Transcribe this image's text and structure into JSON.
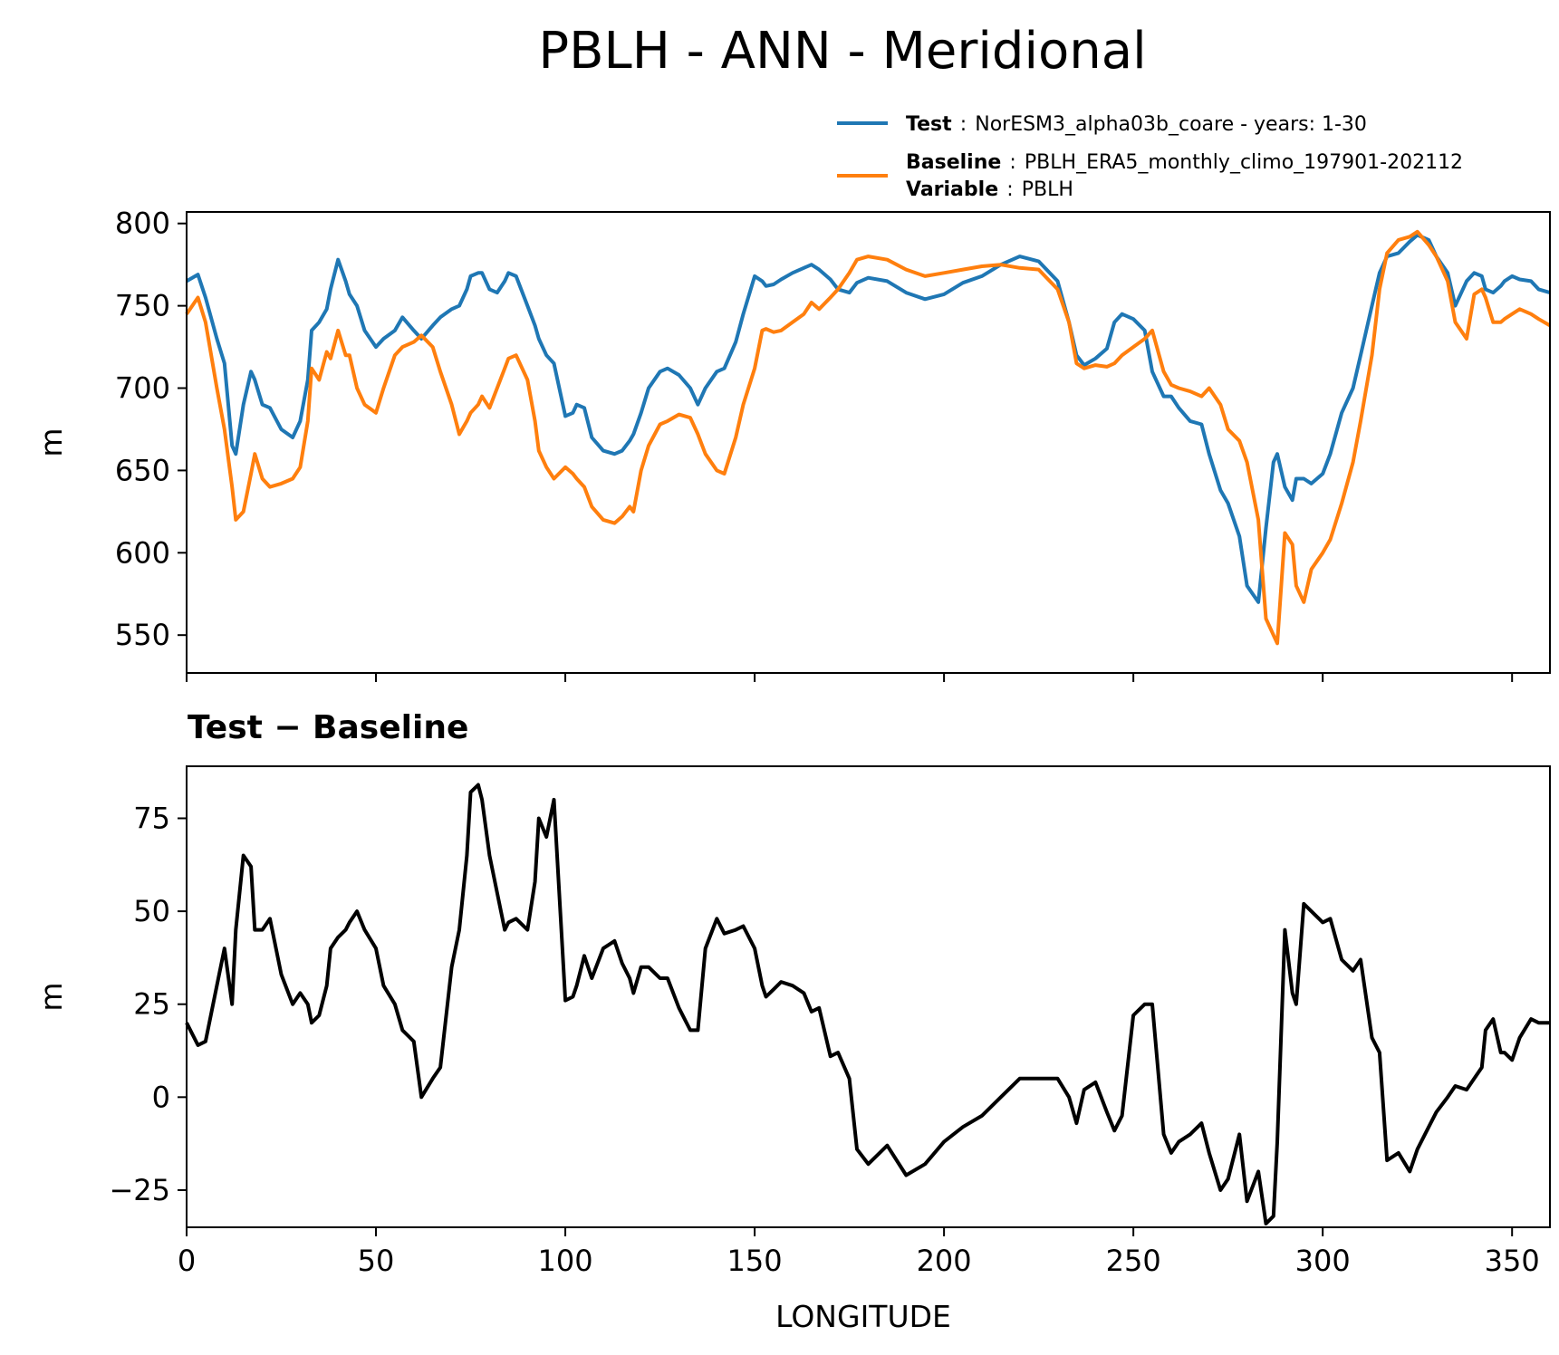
{
  "title": "PBLH - ANN - Meridional",
  "legend": {
    "test_key": "Test",
    "test_sep": ":",
    "test_value": "NorESM3_alpha03b_coare - years: 1-30",
    "baseline_key": "Baseline",
    "baseline_sep": ":",
    "baseline_value": "PBLH_ERA5_monthly_climo_197901-202112",
    "variable_key": "Variable",
    "variable_sep": ":",
    "variable_value": "PBLH"
  },
  "colors": {
    "test": "#1f77b4",
    "baseline": "#ff7f0e",
    "diff": "#000000"
  },
  "chart_data": [
    {
      "type": "line",
      "ylabel": "m",
      "xlim": [
        0,
        360
      ],
      "ylim": [
        527,
        807
      ],
      "x_ticks": [
        0,
        50,
        100,
        150,
        200,
        250,
        300,
        350
      ],
      "y_ticks": [
        550,
        600,
        650,
        700,
        750,
        800
      ],
      "legend_position": "above-right",
      "x": [
        0,
        3,
        5,
        8,
        10,
        12,
        13,
        15,
        17,
        18,
        20,
        22,
        25,
        28,
        30,
        32,
        33,
        35,
        37,
        38,
        40,
        42,
        43,
        45,
        47,
        50,
        52,
        55,
        57,
        60,
        62,
        65,
        67,
        70,
        72,
        74,
        75,
        77,
        78,
        80,
        82,
        84,
        85,
        87,
        90,
        92,
        93,
        95,
        97,
        100,
        102,
        103,
        105,
        107,
        110,
        113,
        115,
        117,
        118,
        120,
        122,
        125,
        127,
        130,
        133,
        135,
        137,
        140,
        142,
        145,
        147,
        150,
        152,
        153,
        155,
        157,
        160,
        163,
        165,
        167,
        170,
        172,
        175,
        177,
        180,
        185,
        190,
        195,
        200,
        205,
        210,
        215,
        220,
        225,
        230,
        233,
        235,
        237,
        240,
        243,
        245,
        247,
        250,
        253,
        255,
        258,
        260,
        262,
        265,
        268,
        270,
        273,
        275,
        278,
        280,
        283,
        285,
        287,
        288,
        290,
        292,
        293,
        295,
        297,
        300,
        302,
        305,
        308,
        310,
        313,
        315,
        317,
        320,
        323,
        325,
        328,
        330,
        333,
        335,
        338,
        340,
        342,
        343,
        345,
        347,
        348,
        350,
        352,
        355,
        357,
        360
      ],
      "series": [
        {
          "name": "Test",
          "values": [
            765,
            769,
            755,
            730,
            715,
            665,
            660,
            690,
            710,
            705,
            690,
            688,
            675,
            670,
            680,
            705,
            735,
            740,
            748,
            760,
            778,
            765,
            757,
            750,
            735,
            725,
            730,
            735,
            743,
            735,
            730,
            738,
            743,
            748,
            750,
            760,
            768,
            770,
            770,
            760,
            758,
            765,
            770,
            768,
            750,
            738,
            730,
            720,
            715,
            683,
            685,
            690,
            688,
            670,
            662,
            660,
            662,
            668,
            672,
            685,
            700,
            710,
            712,
            708,
            700,
            690,
            700,
            710,
            712,
            728,
            745,
            768,
            765,
            762,
            763,
            766,
            770,
            773,
            775,
            772,
            766,
            760,
            758,
            764,
            767,
            765,
            758,
            754,
            757,
            764,
            768,
            775,
            780,
            777,
            765,
            740,
            720,
            714,
            718,
            724,
            740,
            745,
            742,
            735,
            710,
            695,
            695,
            688,
            680,
            678,
            660,
            638,
            630,
            610,
            580,
            570,
            615,
            655,
            660,
            640,
            632,
            645,
            645,
            642,
            648,
            660,
            685,
            700,
            720,
            750,
            770,
            780,
            782,
            789,
            793,
            790,
            780,
            770,
            750,
            765,
            770,
            768,
            760,
            758,
            762,
            765,
            768,
            766,
            765,
            760,
            758
          ]
        },
        {
          "name": "Baseline",
          "values": [
            745,
            755,
            740,
            700,
            675,
            640,
            620,
            625,
            648,
            660,
            645,
            640,
            642,
            645,
            652,
            680,
            712,
            705,
            722,
            718,
            735,
            720,
            720,
            700,
            690,
            685,
            700,
            720,
            725,
            728,
            732,
            725,
            710,
            690,
            672,
            680,
            685,
            690,
            695,
            688,
            700,
            712,
            718,
            720,
            705,
            680,
            662,
            652,
            645,
            652,
            648,
            645,
            640,
            628,
            620,
            618,
            622,
            628,
            625,
            650,
            665,
            678,
            680,
            684,
            682,
            672,
            660,
            650,
            648,
            670,
            690,
            712,
            735,
            736,
            734,
            735,
            740,
            745,
            752,
            748,
            755,
            760,
            770,
            778,
            780,
            778,
            772,
            768,
            770,
            772,
            774,
            775,
            773,
            772,
            760,
            740,
            715,
            712,
            714,
            713,
            715,
            720,
            725,
            730,
            735,
            710,
            702,
            700,
            698,
            695,
            700,
            690,
            675,
            668,
            655,
            620,
            560,
            550,
            545,
            612,
            605,
            580,
            570,
            590,
            600,
            608,
            630,
            655,
            680,
            720,
            760,
            782,
            790,
            792,
            795,
            787,
            780,
            765,
            740,
            730,
            757,
            760,
            755,
            740,
            740,
            742,
            745,
            748,
            745,
            742,
            738
          ]
        }
      ]
    },
    {
      "type": "line",
      "title": "Test − Baseline",
      "ylabel": "m",
      "xlabel": "LONGITUDE",
      "xlim": [
        0,
        360
      ],
      "ylim": [
        -35,
        89
      ],
      "x_ticks": [
        0,
        50,
        100,
        150,
        200,
        250,
        300,
        350
      ],
      "y_ticks": [
        -25,
        0,
        25,
        50,
        75
      ],
      "series": [
        {
          "name": "Test − Baseline",
          "values": [
            20,
            14,
            15,
            30,
            40,
            25,
            45,
            65,
            62,
            45,
            45,
            48,
            33,
            25,
            28,
            25,
            20,
            22,
            30,
            40,
            43,
            45,
            47,
            50,
            45,
            40,
            30,
            25,
            18,
            15,
            0,
            5,
            8,
            35,
            45,
            65,
            82,
            84,
            80,
            65,
            55,
            45,
            47,
            48,
            45,
            58,
            75,
            70,
            80,
            26,
            27,
            30,
            38,
            32,
            40,
            42,
            36,
            32,
            28,
            35,
            35,
            32,
            32,
            24,
            18,
            18,
            40,
            48,
            44,
            45,
            46,
            40,
            30,
            27,
            29,
            31,
            30,
            28,
            23,
            24,
            11,
            12,
            5,
            -14,
            -18,
            -13,
            -21,
            -18,
            -12,
            -8,
            -5,
            0,
            5,
            5,
            5,
            0,
            -7,
            2,
            4,
            -4,
            -9,
            -5,
            22,
            25,
            25,
            -10,
            -15,
            -12,
            -10,
            -7,
            -15,
            -25,
            -22,
            -10,
            -28,
            -20,
            -34,
            -32,
            -12,
            45,
            28,
            25,
            52,
            50,
            47,
            48,
            37,
            34,
            37,
            16,
            12,
            -17,
            -15,
            -20,
            -14,
            -8,
            -4,
            0,
            3,
            2,
            5,
            8,
            18,
            21,
            12,
            12,
            10,
            16,
            21,
            20,
            20
          ]
        }
      ]
    }
  ]
}
